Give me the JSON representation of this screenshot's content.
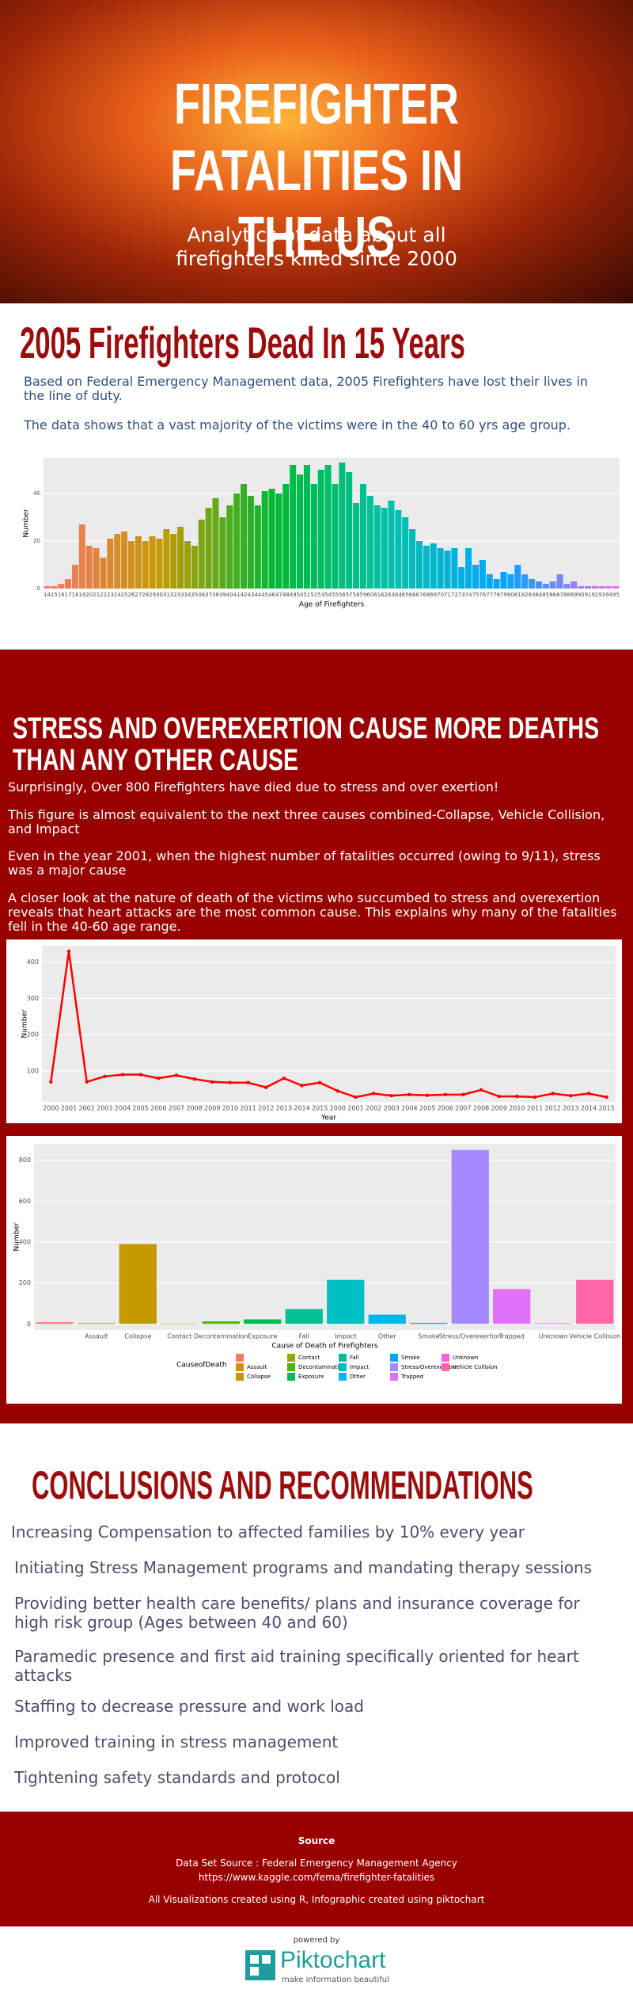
{
  "header": {
    "title": "FIREFIGHTER FATALITIES IN THE US",
    "subtitle": "Analytics of data about all firefighters killed since 2000"
  },
  "section1": {
    "heading": "2005 Firefighters Dead In 15 Years",
    "paragraphs": [
      "Based on Federal Emergency Management data, 2005 Firefighters have lost their lives in the line of duty.",
      "The data shows that a vast majority of the victims were in the 40 to 60 yrs age group."
    ]
  },
  "section2": {
    "heading": "STRESS AND OVEREXERTION CAUSE MORE DEATHS THAN ANY OTHER CAUSE",
    "paragraphs": [
      "Surprisingly, Over 800 Firefighters have died due to stress and over exertion!",
      "This figure is almost equivalent to the next three causes combined-Collapse, Vehicle Collision, and Impact",
      "Even in the year 2001, when the highest number of fatalities occurred (owing to 9/11), stress was a major cause",
      "A closer look at the nature of death of the victims who succumbed to stress and overexertion reveals that heart attacks are the most common cause. This explains why many of the fatalities fell in the 40-60 age range."
    ]
  },
  "section3": {
    "heading": "CONCLUSIONS AND RECOMMENDATIONS",
    "items": [
      "Increasing Compensation to affected families by 10% every year",
      "Initiating Stress Management programs and mandating therapy sessions",
      "Providing better health care benefits/ plans and insurance coverage for high risk group (Ages between 40 and 60)",
      "Paramedic presence and first aid training specifically oriented for heart attacks",
      "Staffing to decrease pressure and work load",
      "Improved training in stress management",
      "Tightening safety standards and protocol"
    ]
  },
  "footer": {
    "heading": "Source",
    "lines": [
      "Data Set Source : Federal Emergency Management Agency",
      "https://www.kaggle.com/fema/firefighter-fatalities",
      "All Visualizations created using R, Infographic created using piktochart"
    ]
  },
  "powered": {
    "label": "powered by",
    "brand": "Piktochart",
    "tagline": "make information beautiful"
  },
  "chart_data": [
    {
      "type": "bar",
      "x_label": "Age of Firefighters",
      "y_label": "Number",
      "categories": [
        14,
        15,
        16,
        17,
        18,
        19,
        20,
        21,
        22,
        23,
        24,
        25,
        26,
        27,
        28,
        29,
        30,
        31,
        32,
        33,
        34,
        35,
        36,
        37,
        38,
        39,
        40,
        41,
        42,
        43,
        44,
        45,
        46,
        47,
        48,
        49,
        50,
        51,
        52,
        53,
        54,
        55,
        56,
        57,
        58,
        59,
        60,
        61,
        62,
        63,
        64,
        65,
        66,
        67,
        68,
        69,
        70,
        71,
        72,
        73,
        74,
        75,
        76,
        77,
        78,
        79,
        80,
        81,
        82,
        83,
        84,
        85,
        86,
        87,
        88,
        89,
        90,
        91,
        92,
        93,
        94,
        95
      ],
      "values": [
        1,
        1,
        2,
        4,
        10,
        27,
        18,
        17,
        13,
        21,
        23,
        24,
        20,
        22,
        20,
        22,
        21,
        25,
        23,
        26,
        20,
        18,
        29,
        34,
        38,
        30,
        35,
        40,
        44,
        39,
        35,
        41,
        42,
        40,
        44,
        52,
        48,
        52,
        44,
        50,
        52,
        44,
        53,
        49,
        36,
        44,
        39,
        35,
        34,
        37,
        33,
        30,
        25,
        20,
        18,
        19,
        17,
        16,
        17,
        9,
        17,
        10,
        12,
        6,
        4,
        7,
        6,
        10,
        6,
        4,
        3,
        2,
        3,
        6,
        2,
        3,
        1,
        1,
        1,
        1,
        1,
        1
      ],
      "color_scale": [
        "#f8766d",
        "#c49a00",
        "#00b933",
        "#00c1a9",
        "#00a5ff",
        "#e76bf3"
      ],
      "ylim": [
        0,
        55
      ],
      "yticks": [
        0,
        20,
        40
      ],
      "grid": true
    },
    {
      "type": "line",
      "x_label": "Year",
      "y_label": "Number",
      "color": "#ff0000",
      "categories": [
        "2000",
        "2001",
        "2002",
        "2003",
        "2004",
        "2005",
        "2006",
        "2007",
        "2008",
        "2009",
        "2010",
        "2011",
        "2012",
        "2013",
        "2014",
        "2015",
        "2000",
        "2001",
        "2002",
        "2003",
        "2004",
        "2005",
        "2006",
        "2007",
        "2008",
        "2009",
        "2010",
        "2011",
        "2012",
        "2013",
        "2014",
        "2015"
      ],
      "values": [
        70,
        430,
        70,
        85,
        90,
        90,
        80,
        88,
        78,
        70,
        68,
        68,
        55,
        80,
        60,
        68,
        45,
        28,
        38,
        32,
        35,
        33,
        35,
        35,
        48,
        30,
        30,
        28,
        38,
        32,
        38,
        28
      ],
      "ylim": [
        15,
        445
      ],
      "yticks": [
        100,
        200,
        300,
        400
      ],
      "grid": true
    },
    {
      "type": "bar",
      "x_label": "Cause of Death of Firefighters",
      "y_label": "Number",
      "legend_title": "CauseofDeath",
      "categories": [
        null,
        "Assault",
        "Collapse",
        "Contact",
        "Decontamination",
        "Exposure",
        "Fall",
        "Impact",
        "Other",
        "Smoke",
        "Stress/Overexertion",
        "Trapped",
        "Unknown",
        "Vehicle Collision"
      ],
      "values": [
        8,
        4,
        390,
        2,
        12,
        22,
        72,
        215,
        45,
        5,
        850,
        170,
        3,
        215
      ],
      "colors": [
        "#f8766d",
        "#e38900",
        "#c49a00",
        "#99a800",
        "#53b400",
        "#00bc56",
        "#00c094",
        "#00bfc4",
        "#00b6eb",
        "#06a4ff",
        "#a58aff",
        "#df70f8",
        "#fb61d7",
        "#ff66a8"
      ],
      "ylim": [
        -30,
        880
      ],
      "yticks": [
        0,
        200,
        400,
        600,
        800
      ],
      "grid": true
    }
  ]
}
